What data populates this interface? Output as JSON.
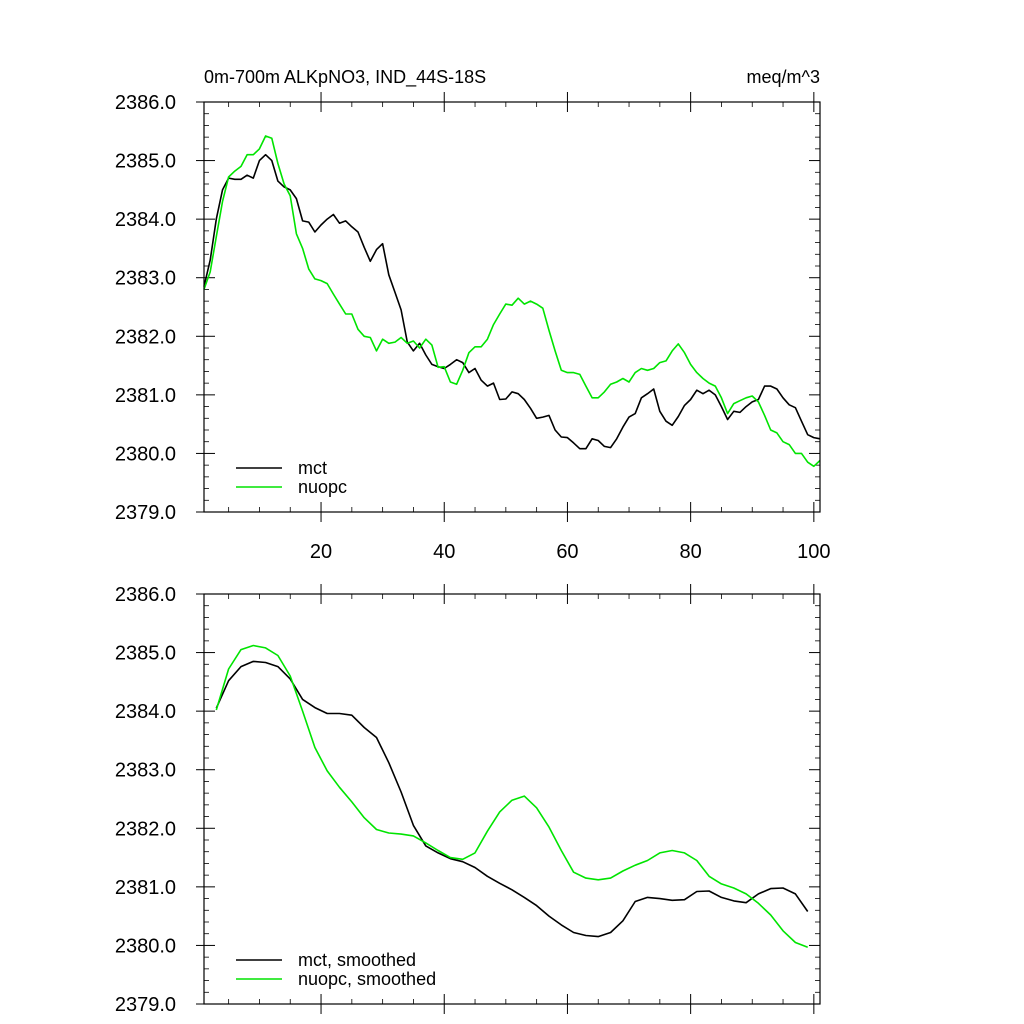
{
  "chart_data": [
    {
      "type": "line",
      "title": "0m-700m ALKpNO3, IND_44S-18S",
      "units": "meq/m^3",
      "xlim": [
        1,
        101
      ],
      "ylim": [
        2379.0,
        2386.0
      ],
      "xticks": [
        20,
        40,
        60,
        80,
        100
      ],
      "xtick_labels": [
        "20",
        "40",
        "60",
        "80",
        "100"
      ],
      "yticks": [
        2379.0,
        2380.0,
        2381.0,
        2382.0,
        2383.0,
        2384.0,
        2385.0,
        2386.0
      ],
      "ytick_labels": [
        "2379.0",
        "2380.0",
        "2381.0",
        "2382.0",
        "2383.0",
        "2384.0",
        "2385.0",
        "2386.0"
      ],
      "legend_position": "bottom-left",
      "series": [
        {
          "name": "mct",
          "color": "#000000",
          "x": [
            1,
            2,
            3,
            4,
            5,
            6,
            7,
            8,
            9,
            10,
            11,
            12,
            13,
            14,
            15,
            16,
            17,
            18,
            19,
            20,
            21,
            22,
            23,
            24,
            25,
            26,
            27,
            28,
            29,
            30,
            31,
            32,
            33,
            34,
            35,
            36,
            37,
            38,
            39,
            40,
            41,
            42,
            43,
            44,
            45,
            46,
            47,
            48,
            49,
            50,
            51,
            52,
            53,
            54,
            55,
            56,
            57,
            58,
            59,
            60,
            61,
            62,
            63,
            64,
            65,
            66,
            67,
            68,
            69,
            70,
            71,
            72,
            73,
            74,
            75,
            76,
            77,
            78,
            79,
            80,
            81,
            82,
            83,
            84,
            85,
            86,
            87,
            88,
            89,
            90,
            91,
            92,
            93,
            94,
            95,
            96,
            97,
            98,
            99,
            100,
            101
          ],
          "values": [
            2382.85,
            2383.3,
            2384.0,
            2384.5,
            2384.7,
            2384.68,
            2384.68,
            2384.75,
            2384.7,
            2385.0,
            2385.1,
            2385.0,
            2384.65,
            2384.55,
            2384.5,
            2384.35,
            2383.97,
            2383.95,
            2383.78,
            2383.9,
            2384.0,
            2384.08,
            2383.93,
            2383.97,
            2383.87,
            2383.78,
            2383.52,
            2383.28,
            2383.48,
            2383.58,
            2383.05,
            2382.75,
            2382.45,
            2381.9,
            2381.75,
            2381.88,
            2381.68,
            2381.52,
            2381.48,
            2381.45,
            2381.52,
            2381.6,
            2381.55,
            2381.38,
            2381.45,
            2381.25,
            2381.15,
            2381.2,
            2380.92,
            2380.93,
            2381.05,
            2381.02,
            2380.92,
            2380.77,
            2380.6,
            2380.62,
            2380.65,
            2380.4,
            2380.28,
            2380.27,
            2380.18,
            2380.08,
            2380.08,
            2380.25,
            2380.22,
            2380.12,
            2380.1,
            2380.25,
            2380.45,
            2380.62,
            2380.68,
            2380.95,
            2381.02,
            2381.1,
            2380.72,
            2380.55,
            2380.48,
            2380.63,
            2380.82,
            2380.92,
            2381.08,
            2381.02,
            2381.08,
            2381.0,
            2380.8,
            2380.58,
            2380.72,
            2380.7,
            2380.8,
            2380.88,
            2380.92,
            2381.15,
            2381.15,
            2381.1,
            2380.95,
            2380.83,
            2380.78,
            2380.55,
            2380.32,
            2380.27,
            2380.25
          ]
        },
        {
          "name": "nuopc",
          "color": "#00e400",
          "x": [
            1,
            2,
            3,
            4,
            5,
            6,
            7,
            8,
            9,
            10,
            11,
            12,
            13,
            14,
            15,
            16,
            17,
            18,
            19,
            20,
            21,
            22,
            23,
            24,
            25,
            26,
            27,
            28,
            29,
            30,
            31,
            32,
            33,
            34,
            35,
            36,
            37,
            38,
            39,
            40,
            41,
            42,
            43,
            44,
            45,
            46,
            47,
            48,
            49,
            50,
            51,
            52,
            53,
            54,
            55,
            56,
            57,
            58,
            59,
            60,
            61,
            62,
            63,
            64,
            65,
            66,
            67,
            68,
            69,
            70,
            71,
            72,
            73,
            74,
            75,
            76,
            77,
            78,
            79,
            80,
            81,
            82,
            83,
            84,
            85,
            86,
            87,
            88,
            89,
            90,
            91,
            92,
            93,
            94,
            95,
            96,
            97,
            98,
            99,
            100,
            101
          ],
          "values": [
            2382.8,
            2383.1,
            2383.7,
            2384.3,
            2384.72,
            2384.82,
            2384.9,
            2385.1,
            2385.1,
            2385.2,
            2385.42,
            2385.38,
            2384.95,
            2384.6,
            2384.4,
            2383.75,
            2383.5,
            2383.15,
            2382.98,
            2382.95,
            2382.9,
            2382.72,
            2382.55,
            2382.38,
            2382.38,
            2382.12,
            2382.0,
            2381.98,
            2381.75,
            2381.95,
            2381.88,
            2381.9,
            2381.98,
            2381.88,
            2381.92,
            2381.8,
            2381.95,
            2381.85,
            2381.47,
            2381.48,
            2381.22,
            2381.18,
            2381.42,
            2381.72,
            2381.82,
            2381.82,
            2381.95,
            2382.2,
            2382.38,
            2382.55,
            2382.53,
            2382.65,
            2382.55,
            2382.6,
            2382.55,
            2382.48,
            2382.1,
            2381.75,
            2381.42,
            2381.38,
            2381.38,
            2381.35,
            2381.15,
            2380.95,
            2380.95,
            2381.05,
            2381.18,
            2381.22,
            2381.28,
            2381.22,
            2381.38,
            2381.45,
            2381.42,
            2381.45,
            2381.55,
            2381.58,
            2381.75,
            2381.87,
            2381.72,
            2381.52,
            2381.38,
            2381.28,
            2381.2,
            2381.15,
            2380.95,
            2380.68,
            2380.85,
            2380.9,
            2380.95,
            2380.98,
            2380.88,
            2380.65,
            2380.4,
            2380.35,
            2380.2,
            2380.15,
            2380.0,
            2380.0,
            2379.85,
            2379.78,
            2379.88
          ]
        }
      ]
    },
    {
      "type": "line",
      "title": "",
      "units": "",
      "xlim": [
        1,
        101
      ],
      "ylim": [
        2379.0,
        2386.0
      ],
      "xticks": [
        20,
        40,
        60,
        80,
        100
      ],
      "xtick_labels": [],
      "yticks": [
        2379.0,
        2380.0,
        2381.0,
        2382.0,
        2383.0,
        2384.0,
        2385.0,
        2386.0
      ],
      "ytick_labels": [
        "2379.0",
        "2380.0",
        "2381.0",
        "2382.0",
        "2383.0",
        "2384.0",
        "2385.0",
        "2386.0"
      ],
      "legend_position": "bottom-left",
      "series": [
        {
          "name": "mct, smoothed",
          "color": "#000000",
          "x": [
            3,
            5,
            7,
            9,
            11,
            13,
            15,
            17,
            19,
            21,
            23,
            25,
            27,
            29,
            31,
            33,
            35,
            37,
            39,
            41,
            43,
            45,
            47,
            49,
            51,
            53,
            55,
            57,
            59,
            61,
            63,
            65,
            67,
            69,
            71,
            73,
            75,
            77,
            79,
            81,
            83,
            85,
            87,
            89,
            91,
            93,
            95,
            97,
            99
          ],
          "values": [
            2384.05,
            2384.52,
            2384.76,
            2384.85,
            2384.83,
            2384.76,
            2384.55,
            2384.2,
            2384.06,
            2383.96,
            2383.96,
            2383.93,
            2383.72,
            2383.55,
            2383.12,
            2382.62,
            2382.05,
            2381.7,
            2381.58,
            2381.48,
            2381.43,
            2381.33,
            2381.18,
            2381.06,
            2380.95,
            2380.82,
            2380.68,
            2380.5,
            2380.35,
            2380.22,
            2380.17,
            2380.15,
            2380.22,
            2380.42,
            2380.75,
            2380.82,
            2380.8,
            2380.77,
            2380.78,
            2380.92,
            2380.93,
            2380.82,
            2380.76,
            2380.73,
            2380.88,
            2380.97,
            2380.98,
            2380.88,
            2380.58
          ]
        },
        {
          "name": "nuopc, smoothed",
          "color": "#00e400",
          "x": [
            3,
            5,
            7,
            9,
            11,
            13,
            15,
            17,
            19,
            21,
            23,
            25,
            27,
            29,
            31,
            33,
            35,
            37,
            39,
            41,
            43,
            45,
            47,
            49,
            51,
            53,
            55,
            57,
            59,
            61,
            63,
            65,
            67,
            69,
            71,
            73,
            75,
            77,
            79,
            81,
            83,
            85,
            87,
            89,
            91,
            93,
            95,
            97,
            99
          ],
          "values": [
            2384.02,
            2384.72,
            2385.05,
            2385.12,
            2385.08,
            2384.95,
            2384.6,
            2384.0,
            2383.38,
            2382.98,
            2382.7,
            2382.45,
            2382.18,
            2381.98,
            2381.92,
            2381.9,
            2381.87,
            2381.75,
            2381.62,
            2381.5,
            2381.47,
            2381.58,
            2381.95,
            2382.28,
            2382.48,
            2382.55,
            2382.35,
            2382.02,
            2381.62,
            2381.25,
            2381.15,
            2381.12,
            2381.15,
            2381.27,
            2381.37,
            2381.45,
            2381.58,
            2381.62,
            2381.58,
            2381.45,
            2381.18,
            2381.05,
            2380.98,
            2380.88,
            2380.72,
            2380.52,
            2380.25,
            2380.05,
            2379.97
          ]
        }
      ]
    }
  ]
}
